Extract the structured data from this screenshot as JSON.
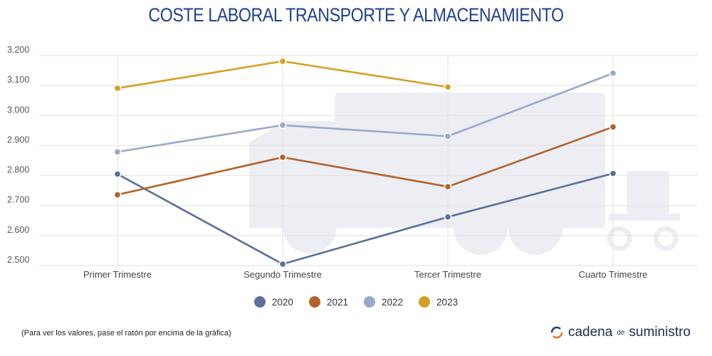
{
  "header": {
    "title": "COSTE LABORAL TRANSPORTE Y ALMACENAMIENTO"
  },
  "footer": {
    "note": "(Para ver los valores, pase el ratón por encima de la gráfica)",
    "brand": {
      "part1": "cadena",
      "part2": "de",
      "part3": "suministro"
    }
  },
  "chart_data": {
    "type": "line",
    "title": "COSTE LABORAL TRANSPORTE Y ALMACENAMIENTO",
    "categories": [
      "Primer Trimestre",
      "Segundo Trimestre",
      "Tercer Trimestre",
      "Cuarto Trimestre"
    ],
    "ylim": [
      2500,
      3200
    ],
    "yticks": [
      "2.500",
      "2.600",
      "2.700",
      "2.800",
      "2.900",
      "3.000",
      "3.100",
      "3.200"
    ],
    "grid": true,
    "legend_position": "bottom",
    "series": [
      {
        "name": "2020",
        "color": "#5b6e9c",
        "values": [
          2805,
          2505,
          2662,
          2807
        ]
      },
      {
        "name": "2021",
        "color": "#b3622a",
        "values": [
          2736,
          2861,
          2763,
          2962
        ]
      },
      {
        "name": "2022",
        "color": "#9ba8cb",
        "values": [
          2879,
          2968,
          2931,
          3141
        ]
      },
      {
        "name": "2023",
        "color": "#d4a024",
        "values": [
          3091,
          3181,
          3095,
          null
        ]
      }
    ]
  }
}
